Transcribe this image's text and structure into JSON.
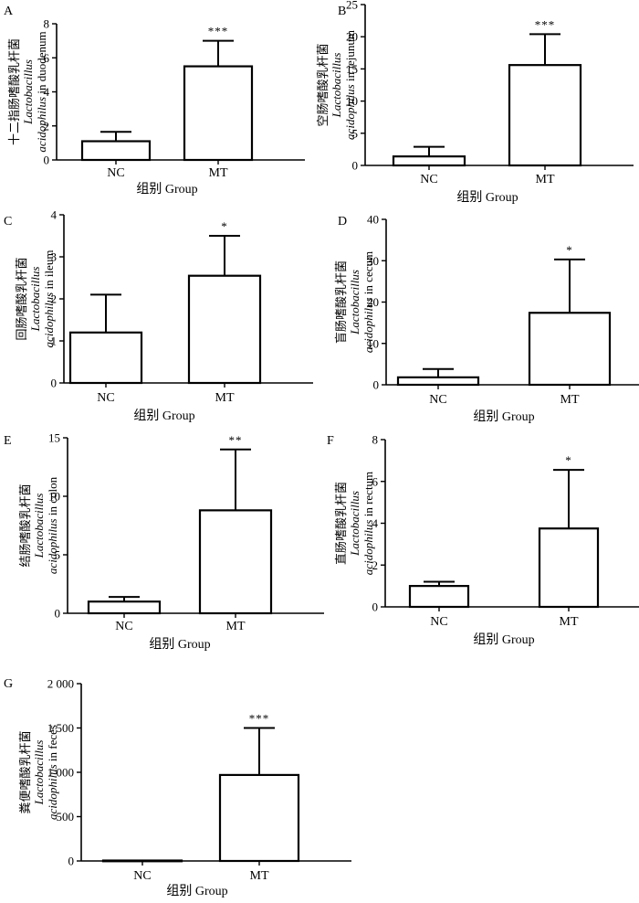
{
  "chart_data": [
    {
      "id": "A",
      "type": "bar",
      "letter": "A",
      "categories": [
        "NC",
        "MT"
      ],
      "values": [
        1.1,
        5.5
      ],
      "errors": [
        0.55,
        1.5
      ],
      "significance": [
        "",
        "***"
      ],
      "ylim": [
        0,
        8
      ],
      "yticks": [
        0,
        2,
        4,
        6,
        8
      ],
      "ytick_labels": [
        "0",
        "2",
        "4",
        "6",
        "8"
      ],
      "ylabel_cn": "十二指肠嗜酸乳杆菌",
      "ylabel_line2": "Lactobacillus",
      "ylabel_line3_it": "acidophilus",
      "ylabel_line3_rest": " in duodenum",
      "xlabel": "组别  Group"
    },
    {
      "id": "B",
      "type": "bar",
      "letter": "B",
      "categories": [
        "NC",
        "MT"
      ],
      "values": [
        1.4,
        15.6
      ],
      "errors": [
        1.5,
        4.8
      ],
      "significance": [
        "",
        "***"
      ],
      "ylim": [
        0,
        25
      ],
      "yticks": [
        0,
        5,
        10,
        15,
        20,
        25
      ],
      "ytick_labels": [
        "0",
        "5",
        "10",
        "15",
        "20",
        "25"
      ],
      "ylabel_cn": "空肠嗜酸乳杆菌",
      "ylabel_line2": "Lactobacillus",
      "ylabel_line3_it": "acidophilus",
      "ylabel_line3_rest": " in jejunum",
      "xlabel": "组别  Group"
    },
    {
      "id": "C",
      "type": "bar",
      "letter": "C",
      "categories": [
        "NC",
        "MT"
      ],
      "values": [
        1.2,
        2.55
      ],
      "errors": [
        0.9,
        0.95
      ],
      "significance": [
        "",
        "*"
      ],
      "ylim": [
        0,
        4
      ],
      "yticks": [
        0,
        1,
        2,
        3,
        4
      ],
      "ytick_labels": [
        "0",
        "1",
        "2",
        "3",
        "4"
      ],
      "ylabel_cn": "回肠嗜酸乳杆菌",
      "ylabel_line2": "Lactobacillus",
      "ylabel_line3_it": "acidophilus",
      "ylabel_line3_rest": " in ileum",
      "xlabel": "组别  Group"
    },
    {
      "id": "D",
      "type": "bar",
      "letter": "D",
      "categories": [
        "NC",
        "MT"
      ],
      "values": [
        1.8,
        17.4
      ],
      "errors": [
        2.0,
        12.9
      ],
      "significance": [
        "",
        "*"
      ],
      "ylim": [
        0,
        40
      ],
      "yticks": [
        0,
        10,
        20,
        30,
        40
      ],
      "ytick_labels": [
        "0",
        "10",
        "20",
        "30",
        "40"
      ],
      "ylabel_cn": "盲肠嗜酸乳杆菌",
      "ylabel_line2": "Lactobacillus",
      "ylabel_line3_it": "acidophilus",
      "ylabel_line3_rest": " in cecum",
      "xlabel": "组别  Group"
    },
    {
      "id": "E",
      "type": "bar",
      "letter": "E",
      "categories": [
        "NC",
        "MT"
      ],
      "values": [
        1.0,
        8.8
      ],
      "errors": [
        0.4,
        5.2
      ],
      "significance": [
        "",
        "**"
      ],
      "ylim": [
        0,
        15
      ],
      "yticks": [
        0,
        5,
        10,
        15
      ],
      "ytick_labels": [
        "0",
        "5",
        "10",
        "15"
      ],
      "ylabel_cn": "结肠嗜酸乳杆菌",
      "ylabel_line2": "Lactobacillus",
      "ylabel_line3_it": "acidophilus",
      "ylabel_line3_rest": " in colon",
      "xlabel": "组别  Group"
    },
    {
      "id": "F",
      "type": "bar",
      "letter": "F",
      "categories": [
        "NC",
        "MT"
      ],
      "values": [
        1.0,
        3.75
      ],
      "errors": [
        0.2,
        2.8
      ],
      "significance": [
        "",
        "*"
      ],
      "ylim": [
        0,
        8
      ],
      "yticks": [
        0,
        2,
        4,
        6,
        8
      ],
      "ytick_labels": [
        "0",
        "2",
        "4",
        "6",
        "8"
      ],
      "ylabel_cn": "直肠嗜酸乳杆菌",
      "ylabel_line2": "Lactobacillus",
      "ylabel_line3_it": "acidophilus",
      "ylabel_line3_rest": " in rectum",
      "xlabel": "组别  Group"
    },
    {
      "id": "G",
      "type": "bar",
      "letter": "G",
      "categories": [
        "NC",
        "MT"
      ],
      "values": [
        5,
        970
      ],
      "errors": [
        0,
        530
      ],
      "significance": [
        "",
        "***"
      ],
      "ylim": [
        0,
        2000
      ],
      "yticks": [
        0,
        500,
        1000,
        1500,
        2000
      ],
      "ytick_labels": [
        "0",
        "500",
        "1 000",
        "1 500",
        "2 000"
      ],
      "ylabel_cn": "粪便嗜酸乳杆菌",
      "ylabel_line2": "Lactobacillus",
      "ylabel_line3_it": "acidophilus",
      "ylabel_line3_rest": " in feces",
      "xlabel": "组别 Group"
    }
  ]
}
